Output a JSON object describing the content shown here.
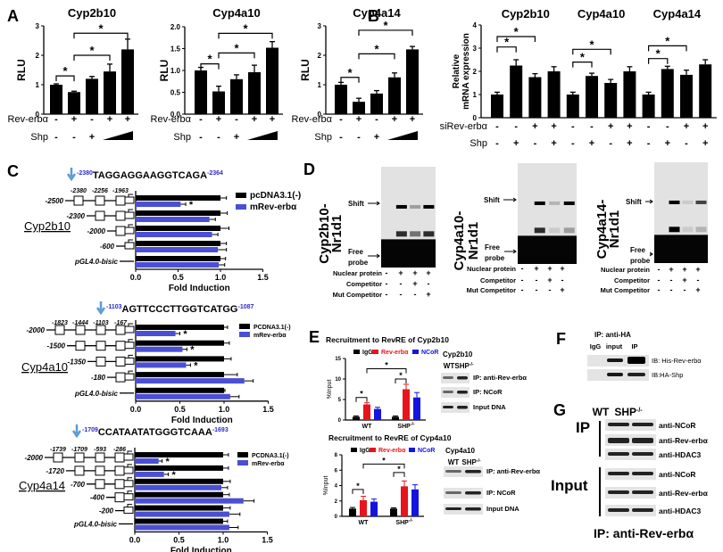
{
  "panel_letters": {
    "A": "A",
    "B": "B",
    "C": "C",
    "D": "D",
    "E": "E",
    "F": "F",
    "G": "G"
  },
  "significance_mark": "*",
  "colors": {
    "bar": "#000000",
    "rev_erba": "#4a4fd6",
    "igg": "#000000",
    "rev_red": "#e8141b",
    "ncor": "#1414e0",
    "seq_numbers": "#2a2ad0",
    "arrow": "#5a9bd5"
  },
  "chart_data": [
    {
      "id": "A-Cyp2b10",
      "type": "bar",
      "title": "Cyp2b10",
      "ylabel": "RLU",
      "ylim": [
        0,
        3
      ],
      "yticks": [
        0,
        1,
        2,
        3
      ],
      "ytick_labels": [
        "0",
        "1",
        "2",
        "3"
      ],
      "values": [
        1.0,
        0.75,
        1.2,
        1.45,
        2.2
      ],
      "errors": [
        0.03,
        0.03,
        0.08,
        0.25,
        0.35
      ],
      "significance": [
        [
          0,
          1,
          1.3
        ],
        [
          1,
          3,
          2.0
        ],
        [
          1,
          4,
          2.75
        ]
      ],
      "conditions": [
        {
          "label": "Rev-erbα",
          "marks": [
            "-",
            "+",
            "-",
            "+",
            "+"
          ]
        },
        {
          "label": "Shp",
          "marks": [
            "-",
            "-",
            "+",
            "ramp",
            "ramp"
          ]
        }
      ]
    },
    {
      "id": "A-Cyp4a10",
      "type": "bar",
      "title": "Cyp4a10",
      "ylabel": "RLU",
      "ylim": [
        0,
        2
      ],
      "yticks": [
        0,
        0.5,
        1,
        1.5,
        2
      ],
      "ytick_labels": [
        "0.0",
        "0.5",
        "1.0",
        "1.5",
        "2.0"
      ],
      "values": [
        1.0,
        0.52,
        0.8,
        0.96,
        1.52
      ],
      "errors": [
        0.07,
        0.12,
        0.1,
        0.16,
        0.14
      ],
      "significance": [
        [
          0,
          1,
          1.15
        ],
        [
          1,
          3,
          1.4
        ],
        [
          1,
          4,
          1.85
        ]
      ],
      "conditions": [
        {
          "label": "Rev-erbα",
          "marks": [
            "-",
            "+",
            "-",
            "+",
            "+"
          ]
        },
        {
          "label": "Shp",
          "marks": [
            "-",
            "-",
            "+",
            "ramp",
            "ramp"
          ]
        }
      ]
    },
    {
      "id": "A-Cyp4a14",
      "type": "bar",
      "title": "Cyp4a14",
      "ylabel": "RLU",
      "ylim": [
        0,
        3
      ],
      "yticks": [
        0,
        1,
        2,
        3
      ],
      "ytick_labels": [
        "0",
        "1",
        "2",
        "3"
      ],
      "values": [
        1.0,
        0.42,
        0.7,
        1.25,
        2.2
      ],
      "errors": [
        0.08,
        0.12,
        0.1,
        0.15,
        0.1
      ],
      "significance": [
        [
          0,
          1,
          1.25
        ],
        [
          1,
          3,
          2.05
        ],
        [
          1,
          4,
          2.85
        ]
      ],
      "conditions": [
        {
          "label": "Rev-erbα",
          "marks": [
            "-",
            "+",
            "-",
            "+",
            "+"
          ]
        },
        {
          "label": "Shp",
          "marks": [
            "-",
            "-",
            "+",
            "ramp",
            "ramp"
          ]
        }
      ]
    },
    {
      "id": "B",
      "type": "bar",
      "group_titles": [
        "Cyp2b10",
        "Cyp4a10",
        "Cyp4a14"
      ],
      "ylabel_lines": [
        "Relative",
        "mRNA expression"
      ],
      "ylim": [
        0,
        4
      ],
      "yticks": [
        0,
        1,
        2,
        3,
        4
      ],
      "ytick_labels": [
        "0",
        "1",
        "2",
        "3",
        "4"
      ],
      "values": [
        1.0,
        2.25,
        1.75,
        2.0,
        1.0,
        1.8,
        1.5,
        2.0,
        1.0,
        2.1,
        1.85,
        2.3
      ],
      "errors": [
        0.1,
        0.25,
        0.15,
        0.2,
        0.1,
        0.12,
        0.15,
        0.2,
        0.1,
        0.12,
        0.2,
        0.2
      ],
      "significance": [
        [
          0,
          1,
          3.05
        ],
        [
          0,
          2,
          3.5
        ],
        [
          4,
          5,
          2.4
        ],
        [
          4,
          6,
          2.95
        ],
        [
          8,
          9,
          2.55
        ],
        [
          8,
          10,
          3.1
        ]
      ],
      "conditions": [
        {
          "label": "siRev-erbα",
          "marks": [
            "-",
            "-",
            "+",
            "+",
            "-",
            "-",
            "+",
            "+",
            "-",
            "-",
            "+",
            "+"
          ]
        },
        {
          "label": "Shp",
          "marks": [
            "-",
            "+",
            "-",
            "+",
            "-",
            "+",
            "-",
            "+",
            "-",
            "+",
            "-",
            "+"
          ]
        }
      ]
    },
    {
      "id": "C-Cyp2b10",
      "type": "bar",
      "orientation": "horizontal",
      "gene": "Cyp2b10",
      "sequence": {
        "start": "-2380",
        "seq": "TAGGAGGAAGGTCAGA",
        "end": "-2364"
      },
      "site_labels": [
        "-2380",
        "-2256",
        "-1963"
      ],
      "constructs": [
        {
          "label": "-2500",
          "sites": 3
        },
        {
          "label": "-2300",
          "sites": 2
        },
        {
          "label": "-2000",
          "sites": 1
        },
        {
          "label": "-600",
          "sites": 0
        },
        {
          "label": "pGL4.0-bisic",
          "sites": -1
        }
      ],
      "series": [
        {
          "name": "pcDNA3.1(-)",
          "values": [
            1,
            1,
            1,
            1,
            1
          ],
          "errors": [
            0.07,
            0.08,
            0.1,
            0.07,
            0.06
          ]
        },
        {
          "name": "mRev-erbα",
          "values": [
            0.53,
            0.87,
            0.9,
            0.97,
            0.98
          ],
          "errors": [
            0.06,
            0.07,
            0.07,
            0.1,
            0.07
          ]
        }
      ],
      "stars": [
        true,
        false,
        false,
        false,
        false
      ],
      "xlim": [
        0,
        1.5
      ],
      "xticks": [
        0,
        0.5,
        1,
        1.5
      ],
      "xtick_labels": [
        "0.0",
        "0.5",
        "1.0",
        "1.5"
      ],
      "xlabel": "Fold Induction"
    },
    {
      "id": "C-Cyp4a10",
      "type": "bar",
      "orientation": "horizontal",
      "gene": "Cyp4a10",
      "sequence": {
        "start": "-1103",
        "seq": "AGTTCCCTTGGTCATGG",
        "end": "-1087"
      },
      "site_labels": [
        "-1823",
        "-1444",
        "-1103",
        "-167"
      ],
      "constructs": [
        {
          "label": "-2000",
          "sites": 4
        },
        {
          "label": "-1500",
          "sites": 3
        },
        {
          "label": "-1350",
          "sites": 2
        },
        {
          "label": "-180",
          "sites": 1
        },
        {
          "label": "pGL4.0-bisic",
          "sites": -1
        }
      ],
      "series": [
        {
          "name": "PCDNA3.1(-)",
          "values": [
            1,
            1,
            1,
            1,
            1
          ],
          "errors": [
            0.04,
            0.06,
            0.08,
            0.15,
            0.01
          ]
        },
        {
          "name": "mRev-erbα",
          "values": [
            0.45,
            0.53,
            0.57,
            1.23,
            1.07
          ],
          "errors": [
            0.05,
            0.05,
            0.05,
            0.1,
            0.1
          ]
        }
      ],
      "stars": [
        true,
        true,
        true,
        false,
        false
      ],
      "xlim": [
        0,
        1.5
      ],
      "xticks": [
        0,
        0.5,
        1,
        1.5
      ],
      "xtick_labels": [
        "0.0",
        "0.5",
        "1.0",
        "1.5"
      ],
      "xlabel": "Fold Induction"
    },
    {
      "id": "C-Cyp4a14",
      "type": "bar",
      "orientation": "horizontal",
      "gene": "Cyp4a14",
      "sequence": {
        "start": "-1709",
        "seq": "CCATAATATGGGTCAAA",
        "end": "-1693"
      },
      "site_labels": [
        "-1739",
        "-1709",
        "-593",
        "-286"
      ],
      "constructs": [
        {
          "label": "-2000",
          "sites": 4
        },
        {
          "label": "-1720",
          "sites": 3
        },
        {
          "label": "-700",
          "sites": 2
        },
        {
          "label": "-400",
          "sites": 1
        },
        {
          "label": "-200",
          "sites": 0
        },
        {
          "label": "pGL4.0-bisic",
          "sites": -1
        }
      ],
      "series": [
        {
          "name": "PCDNA3.1(-)",
          "values": [
            1,
            1,
            1,
            1,
            1,
            1
          ],
          "errors": [
            0.06,
            0.06,
            0.08,
            0.07,
            0.08,
            0.05
          ]
        },
        {
          "name": "mRev-erbα",
          "values": [
            0.27,
            0.33,
            0.98,
            1.23,
            1.07,
            1.07
          ],
          "errors": [
            0.04,
            0.05,
            0.07,
            0.12,
            0.12,
            0.1
          ]
        }
      ],
      "stars": [
        true,
        true,
        false,
        false,
        false,
        false
      ],
      "xlim": [
        0,
        1.5
      ],
      "xticks": [
        0,
        0.5,
        1,
        1.5
      ],
      "xtick_labels": [
        "0.0",
        "0.5",
        "1.0",
        "1.5"
      ],
      "xlabel": "Fold Induction"
    },
    {
      "id": "E-Cyp2b10",
      "type": "bar",
      "title": "Recruitment to RevRE of Cyp2b10",
      "ylabel": "%Input",
      "ylim": [
        0,
        15
      ],
      "yticks": [
        0,
        5,
        10,
        15
      ],
      "ytick_labels": [
        "0",
        "5",
        "10",
        "15"
      ],
      "categories": [
        "WT",
        "SHP"
      ],
      "category_sup": [
        "",
        "-/-"
      ],
      "series": [
        {
          "name": "IgG",
          "values": [
            0.8,
            0.8
          ],
          "errors": [
            0.2,
            0.2
          ]
        },
        {
          "name": "Rev-erbα",
          "values": [
            3.8,
            7.5
          ],
          "errors": [
            0.4,
            1.2
          ]
        },
        {
          "name": "NCoR",
          "values": [
            2.7,
            5.5
          ],
          "errors": [
            0.4,
            1.2
          ]
        }
      ],
      "significance": [
        [
          0,
          1,
          5.5
        ],
        [
          3,
          4,
          10
        ],
        [
          1,
          4,
          12.5
        ]
      ]
    },
    {
      "id": "E-Cyp4a10",
      "type": "bar",
      "title": "Recruitment to RevRE of Cyp4a10",
      "ylabel": "%Input",
      "ylim": [
        0,
        8
      ],
      "yticks": [
        0,
        2,
        4,
        6,
        8
      ],
      "ytick_labels": [
        "0",
        "2",
        "4",
        "6",
        "8"
      ],
      "categories": [
        "WT",
        "SHP"
      ],
      "category_sup": [
        "",
        "-/-"
      ],
      "series": [
        {
          "name": "IgG",
          "values": [
            1.0,
            1.0
          ],
          "errors": [
            0.15,
            0.1
          ]
        },
        {
          "name": "Rev-erbα",
          "values": [
            2.1,
            3.9
          ],
          "errors": [
            0.5,
            0.7
          ]
        },
        {
          "name": "NCoR",
          "values": [
            1.9,
            3.5
          ],
          "errors": [
            0.35,
            0.6
          ]
        }
      ],
      "significance": [
        [
          0,
          1,
          3.5
        ],
        [
          3,
          4,
          5.7
        ],
        [
          1,
          4,
          6.8
        ]
      ]
    }
  ],
  "emsa": [
    {
      "label_lines": [
        "Cyp2b10-",
        "Nr1d1"
      ],
      "shift": "Shift",
      "free_lines": [
        "Free",
        "probe"
      ],
      "rows": [
        {
          "label": "Nuclear protein",
          "marks": [
            "-",
            "+",
            "+",
            "+"
          ]
        },
        {
          "label": "Competitor",
          "marks": [
            "-",
            "-",
            "+",
            "-"
          ]
        },
        {
          "label": "Mut Competitor",
          "marks": [
            "-",
            "-",
            "-",
            "+"
          ]
        }
      ]
    },
    {
      "label_lines": [
        "Cyp4a10-",
        "Nr1d1"
      ],
      "shift": "Shift",
      "free_lines": [
        "Free",
        "probe"
      ],
      "rows": [
        {
          "label": "Nuclear protein",
          "marks": [
            "-",
            "+",
            "+",
            "+"
          ]
        },
        {
          "label": "Competitor",
          "marks": [
            "-",
            "-",
            "+",
            "-"
          ]
        },
        {
          "label": "Mut Competitor",
          "marks": [
            "-",
            "-",
            "-",
            "+"
          ]
        }
      ]
    },
    {
      "label_lines": [
        "Cyp4a14-",
        "Nr1d1"
      ],
      "shift": "Shift",
      "free_lines": [
        "Free",
        "probe"
      ],
      "rows": [
        {
          "label": "Nuclear protein",
          "marks": [
            "-",
            "+",
            "+",
            "+"
          ]
        },
        {
          "label": "Competitor",
          "marks": [
            "-",
            "-",
            "+",
            "-"
          ]
        },
        {
          "label": "Mut Competitor",
          "marks": [
            "-",
            "-",
            "-",
            "+"
          ]
        }
      ]
    }
  ],
  "chip_gels": [
    {
      "title": "Cyp2b10",
      "lanes": [
        "WT",
        "SHP"
      ],
      "lane_sup": "-/-",
      "rows": [
        "IP: anti-Rev-erbα",
        "IP: NCoR",
        "Input DNA"
      ]
    },
    {
      "title": "Cyp4a10",
      "lanes": [
        "WT",
        "SHP"
      ],
      "lane_sup": "-/-",
      "rows": [
        "IP: anti-Rev-erbα",
        "IP: NCoR",
        "Input DNA"
      ]
    }
  ],
  "panel_f": {
    "title": "IP: anti-HA",
    "lanes": [
      "IgG",
      "input",
      "IP"
    ],
    "rows": [
      "IB: His-Rev-erbα",
      "IB:HA-Shp"
    ]
  },
  "panel_g": {
    "lanes": [
      "WT",
      "SHP"
    ],
    "lane_sup": "-/-",
    "groups": [
      {
        "label": "IP",
        "rows": [
          "anti-NCoR",
          "anti-Rev-erbα",
          "anti-HDAC3"
        ]
      },
      {
        "label": "Input",
        "rows": [
          "anti-NCoR",
          "anti-Rev-erbα",
          "anti-HDAC3"
        ]
      }
    ],
    "footer": "IP: anti-Rev-erbα"
  }
}
